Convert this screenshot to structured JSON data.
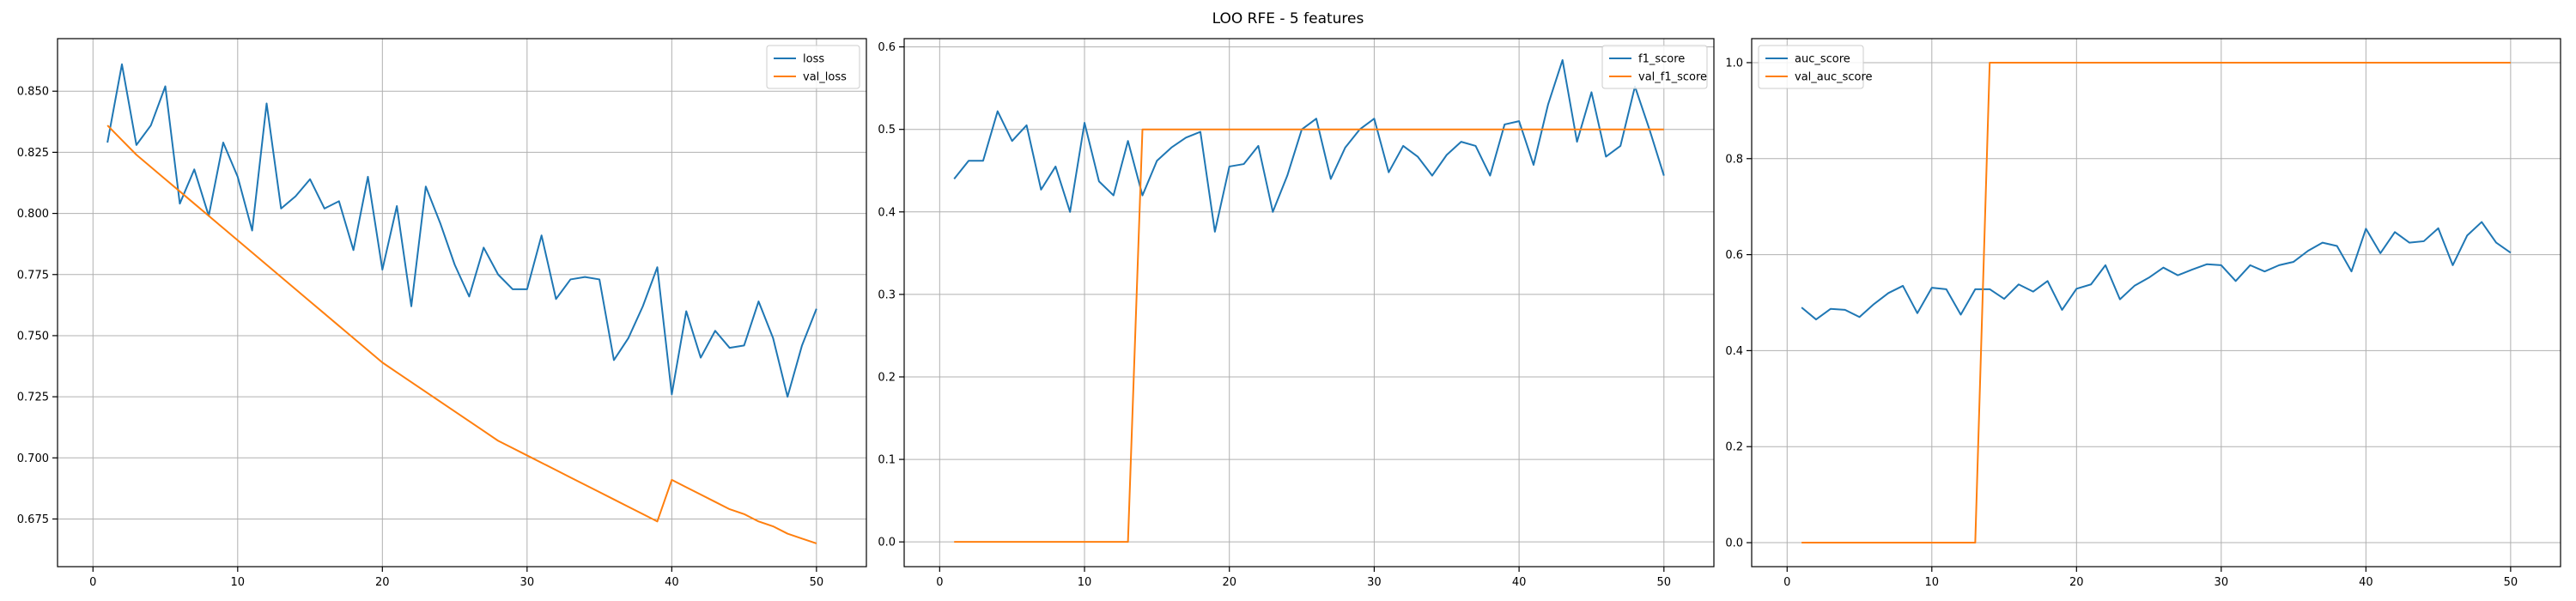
{
  "figure": {
    "title": "LOO RFE - 5 features"
  },
  "colors": {
    "blue": "#1f77b4",
    "orange": "#ff7f0e",
    "grid": "#b0b0b0",
    "axis": "#000000",
    "legend_border": "#cccccc"
  },
  "chart_data": [
    {
      "type": "line",
      "title": "",
      "xlabel": "",
      "ylabel": "",
      "xlim": [
        -2.45,
        53.45
      ],
      "ylim": [
        0.6555,
        0.8715
      ],
      "xticks": [
        0,
        10,
        20,
        30,
        40,
        50
      ],
      "xtick_labels": [
        "0",
        "10",
        "20",
        "30",
        "40",
        "50"
      ],
      "yticks": [
        0.675,
        0.7,
        0.725,
        0.75,
        0.775,
        0.8,
        0.825,
        0.85
      ],
      "ytick_labels": [
        "0.675",
        "0.700",
        "0.725",
        "0.750",
        "0.775",
        "0.800",
        "0.825",
        "0.850"
      ],
      "grid": true,
      "legend_position": "upper right",
      "x": [
        1,
        2,
        3,
        4,
        5,
        6,
        7,
        8,
        9,
        10,
        11,
        12,
        13,
        14,
        15,
        16,
        17,
        18,
        19,
        20,
        21,
        22,
        23,
        24,
        25,
        26,
        27,
        28,
        29,
        30,
        31,
        32,
        33,
        34,
        35,
        36,
        37,
        38,
        39,
        40,
        41,
        42,
        43,
        44,
        45,
        46,
        47,
        48,
        49,
        50
      ],
      "series": [
        {
          "name": "loss",
          "color": "#1f77b4",
          "values": [
            0.829,
            0.861,
            0.828,
            0.836,
            0.852,
            0.804,
            0.818,
            0.799,
            0.829,
            0.815,
            0.793,
            0.845,
            0.802,
            0.807,
            0.814,
            0.802,
            0.805,
            0.785,
            0.815,
            0.777,
            0.803,
            0.762,
            0.811,
            0.796,
            0.779,
            0.766,
            0.786,
            0.775,
            0.769,
            0.769,
            0.791,
            0.765,
            0.773,
            0.774,
            0.773,
            0.74,
            0.749,
            0.762,
            0.778,
            0.726,
            0.76,
            0.741,
            0.752,
            0.745,
            0.746,
            0.764,
            0.749,
            0.725,
            0.746,
            0.761
          ]
        },
        {
          "name": "val_loss",
          "color": "#ff7f0e",
          "values": [
            0.836,
            0.83,
            0.824,
            0.819,
            0.814,
            0.809,
            0.804,
            0.799,
            0.794,
            0.789,
            0.784,
            0.779,
            0.774,
            0.769,
            0.764,
            0.759,
            0.754,
            0.749,
            0.744,
            0.739,
            0.735,
            0.731,
            0.727,
            0.723,
            0.719,
            0.715,
            0.711,
            0.707,
            0.704,
            0.701,
            0.698,
            0.695,
            0.692,
            0.689,
            0.686,
            0.683,
            0.68,
            0.677,
            0.674,
            0.691,
            0.688,
            0.685,
            0.682,
            0.679,
            0.677,
            0.674,
            0.672,
            0.669,
            0.667,
            0.665
          ]
        }
      ]
    },
    {
      "type": "line",
      "title": "",
      "xlabel": "",
      "ylabel": "",
      "xlim": [
        -2.45,
        53.45
      ],
      "ylim": [
        -0.03,
        0.61
      ],
      "xticks": [
        0,
        10,
        20,
        30,
        40,
        50
      ],
      "xtick_labels": [
        "0",
        "10",
        "20",
        "30",
        "40",
        "50"
      ],
      "yticks": [
        0,
        0.1,
        0.2,
        0.3,
        0.4,
        0.5,
        0.6
      ],
      "ytick_labels": [
        "0.0",
        "0.1",
        "0.2",
        "0.3",
        "0.4",
        "0.5",
        "0.6"
      ],
      "grid": true,
      "legend_position": "upper right",
      "x": [
        1,
        2,
        3,
        4,
        5,
        6,
        7,
        8,
        9,
        10,
        11,
        12,
        13,
        14,
        15,
        16,
        17,
        18,
        19,
        20,
        21,
        22,
        23,
        24,
        25,
        26,
        27,
        28,
        29,
        30,
        31,
        32,
        33,
        34,
        35,
        36,
        37,
        38,
        39,
        40,
        41,
        42,
        43,
        44,
        45,
        46,
        47,
        48,
        49,
        50
      ],
      "series": [
        {
          "name": "f1_score",
          "color": "#1f77b4",
          "values": [
            0.44,
            0.462,
            0.462,
            0.522,
            0.486,
            0.505,
            0.427,
            0.455,
            0.4,
            0.508,
            0.437,
            0.42,
            0.486,
            0.42,
            0.462,
            0.478,
            0.49,
            0.497,
            0.376,
            0.455,
            0.458,
            0.48,
            0.4,
            0.444,
            0.5,
            0.513,
            0.44,
            0.478,
            0.5,
            0.513,
            0.448,
            0.48,
            0.467,
            0.444,
            0.469,
            0.485,
            0.48,
            0.444,
            0.506,
            0.51,
            0.457,
            0.53,
            0.584,
            0.485,
            0.545,
            0.467,
            0.48,
            0.552,
            0.5,
            0.444
          ]
        },
        {
          "name": "val_f1_score",
          "color": "#ff7f0e",
          "values": [
            0,
            0,
            0,
            0,
            0,
            0,
            0,
            0,
            0,
            0,
            0,
            0,
            0,
            0.5,
            0.5,
            0.5,
            0.5,
            0.5,
            0.5,
            0.5,
            0.5,
            0.5,
            0.5,
            0.5,
            0.5,
            0.5,
            0.5,
            0.5,
            0.5,
            0.5,
            0.5,
            0.5,
            0.5,
            0.5,
            0.5,
            0.5,
            0.5,
            0.5,
            0.5,
            0.5,
            0.5,
            0.5,
            0.5,
            0.5,
            0.5,
            0.5,
            0.5,
            0.5,
            0.5,
            0.5
          ]
        }
      ]
    },
    {
      "type": "line",
      "title": "",
      "xlabel": "",
      "ylabel": "",
      "xlim": [
        -2.45,
        53.45
      ],
      "ylim": [
        -0.05,
        1.05
      ],
      "xticks": [
        0,
        10,
        20,
        30,
        40,
        50
      ],
      "xtick_labels": [
        "0",
        "10",
        "20",
        "30",
        "40",
        "50"
      ],
      "yticks": [
        0,
        0.2,
        0.4,
        0.6,
        0.8,
        1.0
      ],
      "ytick_labels": [
        "0.0",
        "0.2",
        "0.4",
        "0.6",
        "0.8",
        "1.0"
      ],
      "grid": true,
      "legend_position": "upper left",
      "x": [
        1,
        2,
        3,
        4,
        5,
        6,
        7,
        8,
        9,
        10,
        11,
        12,
        13,
        14,
        15,
        16,
        17,
        18,
        19,
        20,
        21,
        22,
        23,
        24,
        25,
        26,
        27,
        28,
        29,
        30,
        31,
        32,
        33,
        34,
        35,
        36,
        37,
        38,
        39,
        40,
        41,
        42,
        43,
        44,
        45,
        46,
        47,
        48,
        49,
        50
      ],
      "series": [
        {
          "name": "auc_score",
          "color": "#1f77b4",
          "values": [
            0.49,
            0.465,
            0.487,
            0.485,
            0.47,
            0.497,
            0.52,
            0.535,
            0.478,
            0.531,
            0.528,
            0.475,
            0.528,
            0.528,
            0.508,
            0.538,
            0.523,
            0.545,
            0.485,
            0.529,
            0.538,
            0.578,
            0.507,
            0.535,
            0.552,
            0.573,
            0.557,
            0.569,
            0.58,
            0.578,
            0.545,
            0.578,
            0.565,
            0.578,
            0.585,
            0.608,
            0.625,
            0.618,
            0.565,
            0.654,
            0.603,
            0.647,
            0.625,
            0.628,
            0.655,
            0.578,
            0.64,
            0.668,
            0.625,
            0.604
          ]
        },
        {
          "name": "val_auc_score",
          "color": "#ff7f0e",
          "values": [
            0,
            0,
            0,
            0,
            0,
            0,
            0,
            0,
            0,
            0,
            0,
            0,
            0,
            1,
            1,
            1,
            1,
            1,
            1,
            1,
            1,
            1,
            1,
            1,
            1,
            1,
            1,
            1,
            1,
            1,
            1,
            1,
            1,
            1,
            1,
            1,
            1,
            1,
            1,
            1,
            1,
            1,
            1,
            1,
            1,
            1,
            1,
            1,
            1,
            1
          ]
        }
      ]
    }
  ]
}
